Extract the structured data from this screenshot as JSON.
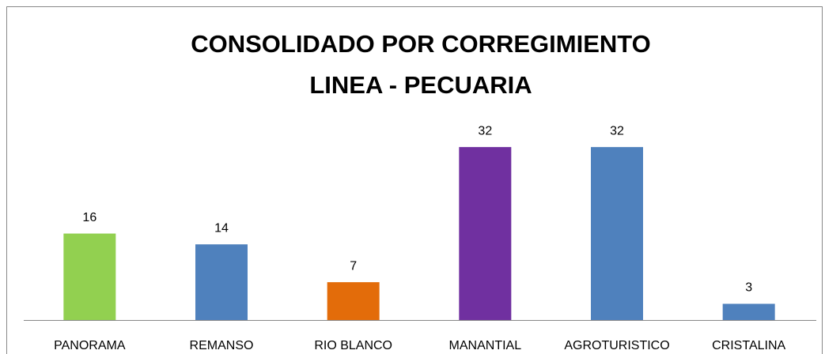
{
  "chart_data": {
    "type": "bar",
    "title": [
      "CONSOLIDADO POR CORREGIMIENTO",
      "LINEA - PECUARIA"
    ],
    "categories": [
      "PANORAMA",
      "REMANSO",
      "RIO BLANCO",
      "MANANTIAL",
      "AGROTURISTICO",
      "CRISTALINA"
    ],
    "values": [
      16,
      14,
      7,
      32,
      32,
      3
    ],
    "colors": [
      "#92d050",
      "#4f81bd",
      "#e36c0a",
      "#7030a0",
      "#4f81bd",
      "#4f81bd"
    ],
    "ylim": [
      0,
      35
    ]
  }
}
